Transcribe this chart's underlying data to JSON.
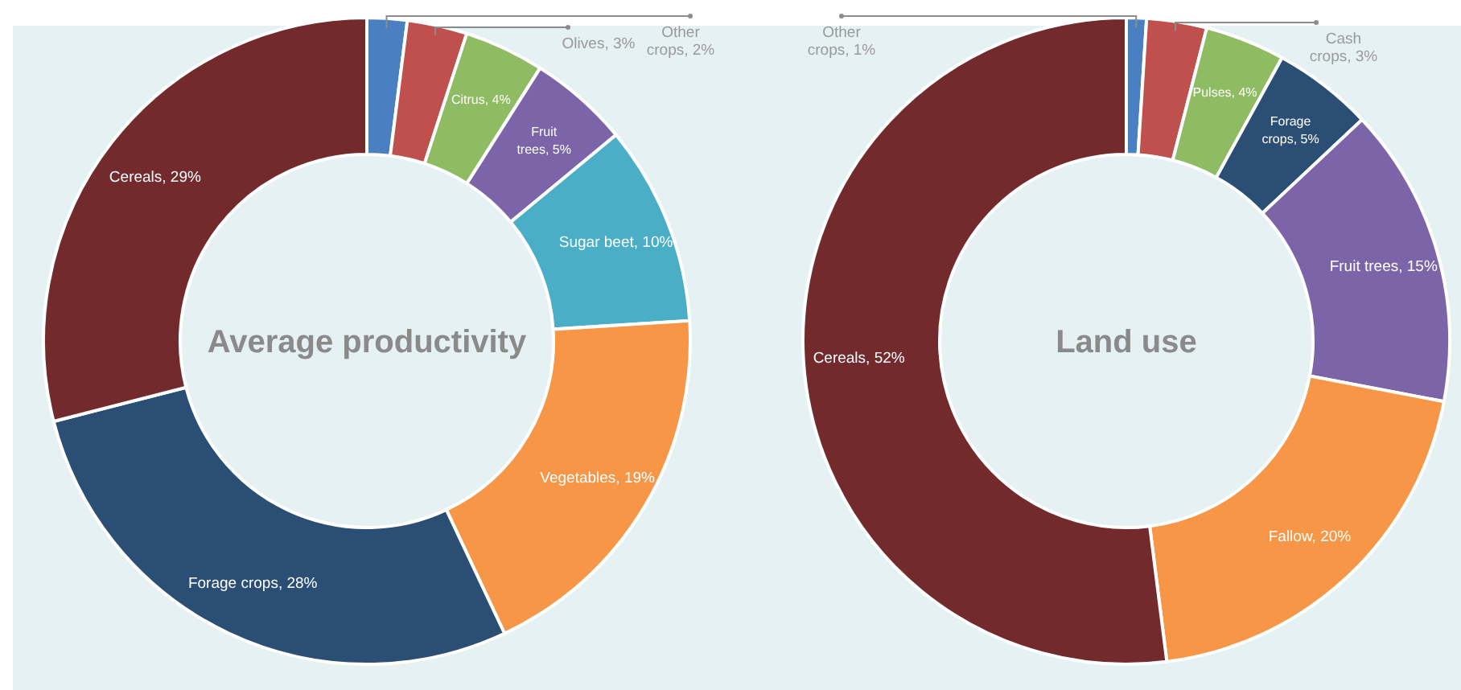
{
  "chart_data": [
    {
      "type": "donut",
      "title": "Average productivity",
      "categories": [
        "Other crops",
        "Olives",
        "Citrus",
        "Fruit trees",
        "Sugar beet",
        "Vegetables",
        "Forage crops",
        "Cereals"
      ],
      "values": [
        2,
        3,
        4,
        5,
        10,
        19,
        28,
        29
      ],
      "value_labels": [
        "2%",
        "3%",
        "4%",
        "5%",
        "10%",
        "19%",
        "28%",
        "29%"
      ],
      "colors": [
        "#4a7fc1",
        "#c0504d",
        "#8fbc62",
        "#7b64a8",
        "#4aaec6",
        "#f79646",
        "#2a4e74",
        "#722a2d"
      ]
    },
    {
      "type": "donut",
      "title": "Land use",
      "categories": [
        "Other crops",
        "Cash crops",
        "Pulses",
        "Forage crops",
        "Fruit trees",
        "Fallow",
        "Cereals"
      ],
      "values": [
        1,
        3,
        4,
        5,
        15,
        20,
        52
      ],
      "value_labels": [
        "1%",
        "3%",
        "4%",
        "5%",
        "15%",
        "20%",
        "52%"
      ],
      "colors": [
        "#4a7fc1",
        "#c0504d",
        "#8fbc62",
        "#2a4e74",
        "#7b64a8",
        "#f79646",
        "#722a2d"
      ]
    }
  ]
}
